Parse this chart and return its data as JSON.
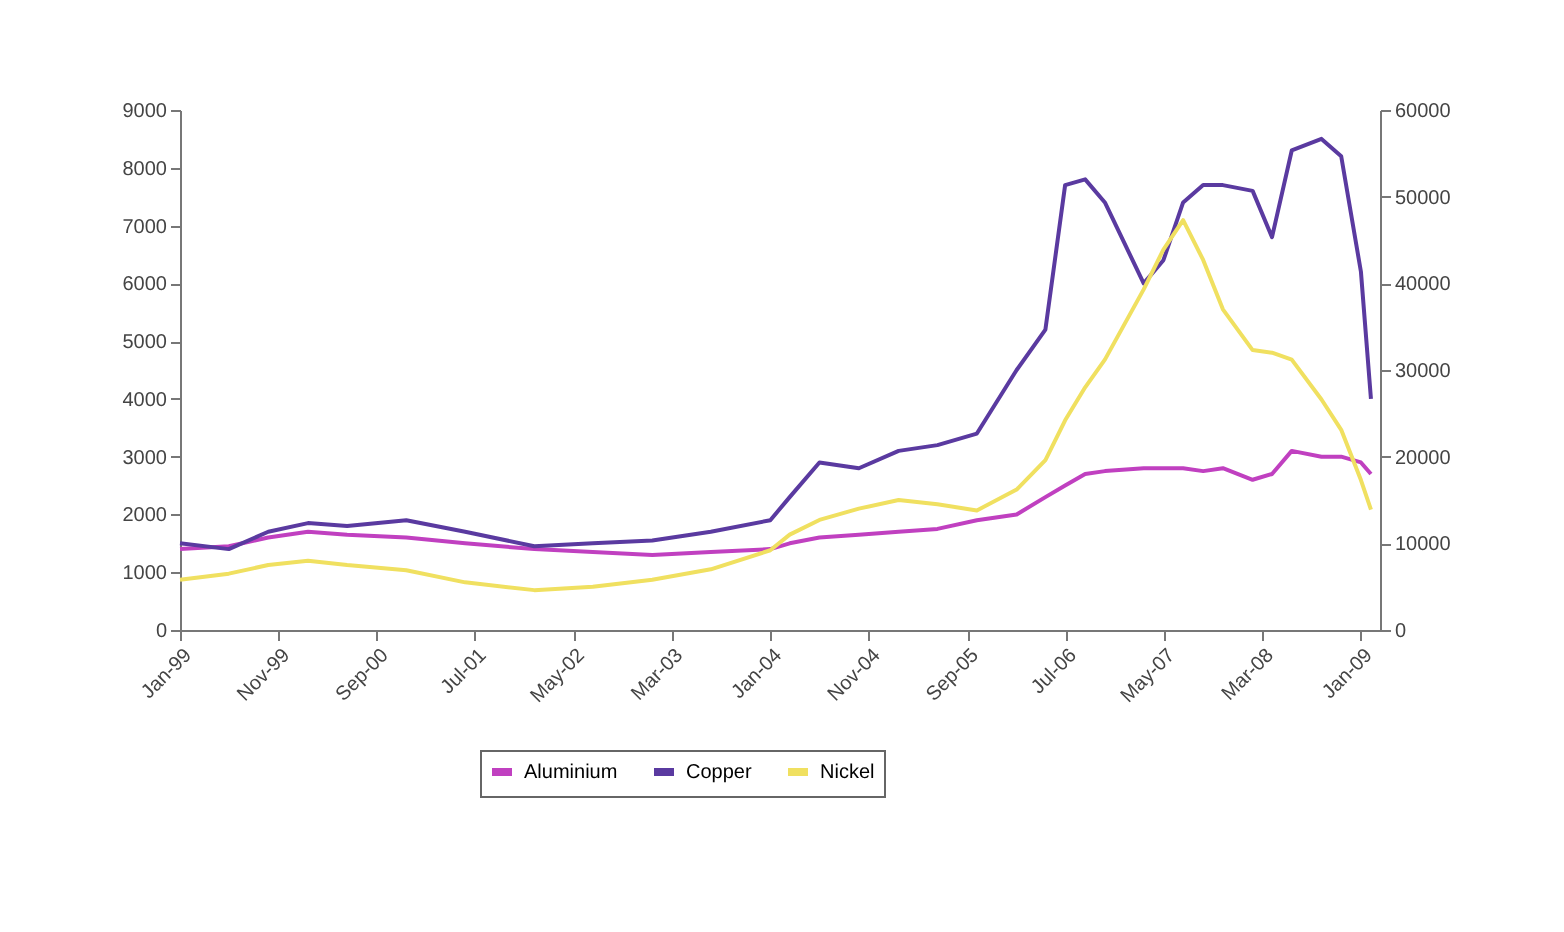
{
  "chart_data": {
    "type": "line",
    "x": [
      "1999-01",
      "1999-06",
      "1999-10",
      "2000-02",
      "2000-06",
      "2000-12",
      "2001-06",
      "2002-01",
      "2002-07",
      "2003-01",
      "2003-07",
      "2004-01",
      "2004-03",
      "2004-06",
      "2004-10",
      "2005-02",
      "2005-06",
      "2005-10",
      "2006-02",
      "2006-05",
      "2006-07",
      "2006-09",
      "2006-11",
      "2007-03",
      "2007-05",
      "2007-07",
      "2007-09",
      "2007-11",
      "2008-02",
      "2008-04",
      "2008-06",
      "2008-09",
      "2008-11",
      "2009-01",
      "2009-02"
    ],
    "series": [
      {
        "name": "Aluminium",
        "color": "#c040c0",
        "values": [
          1400,
          1450,
          1600,
          1700,
          1650,
          1600,
          1500,
          1400,
          1350,
          1300,
          1350,
          1400,
          1500,
          1600,
          1650,
          1700,
          1750,
          1900,
          2000,
          2300,
          2500,
          2700,
          2750,
          2800,
          2800,
          2800,
          2750,
          2800,
          2600,
          2700,
          3100,
          3000,
          3000,
          2900,
          2700
        ]
      },
      {
        "name": "Copper",
        "color": "#5a3aa0",
        "values": [
          1500,
          1400,
          1700,
          1850,
          1800,
          1900,
          1700,
          1450,
          1500,
          1550,
          1700,
          1900,
          2300,
          2900,
          2800,
          3100,
          3200,
          3400,
          4500,
          5200,
          7700,
          7800,
          7400,
          6000,
          6400,
          7400,
          7700,
          7700,
          7600,
          6800,
          8300,
          8500,
          8200,
          6200,
          4000
        ]
      },
      {
        "name": "Nickel",
        "color": "#f0e060",
        "axis": "y2",
        "values": [
          5800,
          6500,
          7500,
          8000,
          7500,
          6900,
          5500,
          4600,
          5000,
          5800,
          7000,
          9200,
          11000,
          12700,
          14000,
          15000,
          14500,
          13800,
          16200,
          19600,
          24200,
          28000,
          31200,
          39300,
          43900,
          47300,
          42700,
          37000,
          32300,
          32000,
          31200,
          26600,
          23100,
          17300,
          13900
        ]
      }
    ],
    "xlim": [
      "1999-01",
      "2009-03"
    ],
    "xticks": [
      {
        "value": "1999-01",
        "label": "Jan-99"
      },
      {
        "value": "1999-11",
        "label": "Nov-99"
      },
      {
        "value": "2000-09",
        "label": "Sep-00"
      },
      {
        "value": "2001-07",
        "label": "Jul-01"
      },
      {
        "value": "2002-05",
        "label": "May-02"
      },
      {
        "value": "2003-03",
        "label": "Mar-03"
      },
      {
        "value": "2004-01",
        "label": "Jan-04"
      },
      {
        "value": "2004-11",
        "label": "Nov-04"
      },
      {
        "value": "2005-09",
        "label": "Sep-05"
      },
      {
        "value": "2006-07",
        "label": "Jul-06"
      },
      {
        "value": "2007-05",
        "label": "May-07"
      },
      {
        "value": "2008-03",
        "label": "Mar-08"
      },
      {
        "value": "2009-01",
        "label": "Jan-09"
      }
    ],
    "ylim": [
      0,
      9000
    ],
    "yticks": [
      0,
      1000,
      2000,
      3000,
      4000,
      5000,
      6000,
      7000,
      8000,
      9000
    ],
    "y2lim": [
      0,
      60000
    ],
    "y2ticks": [
      0,
      10000,
      20000,
      30000,
      40000,
      50000,
      60000
    ],
    "legend": "bottom",
    "grid": false,
    "marker": "none",
    "line_style": "solid"
  }
}
